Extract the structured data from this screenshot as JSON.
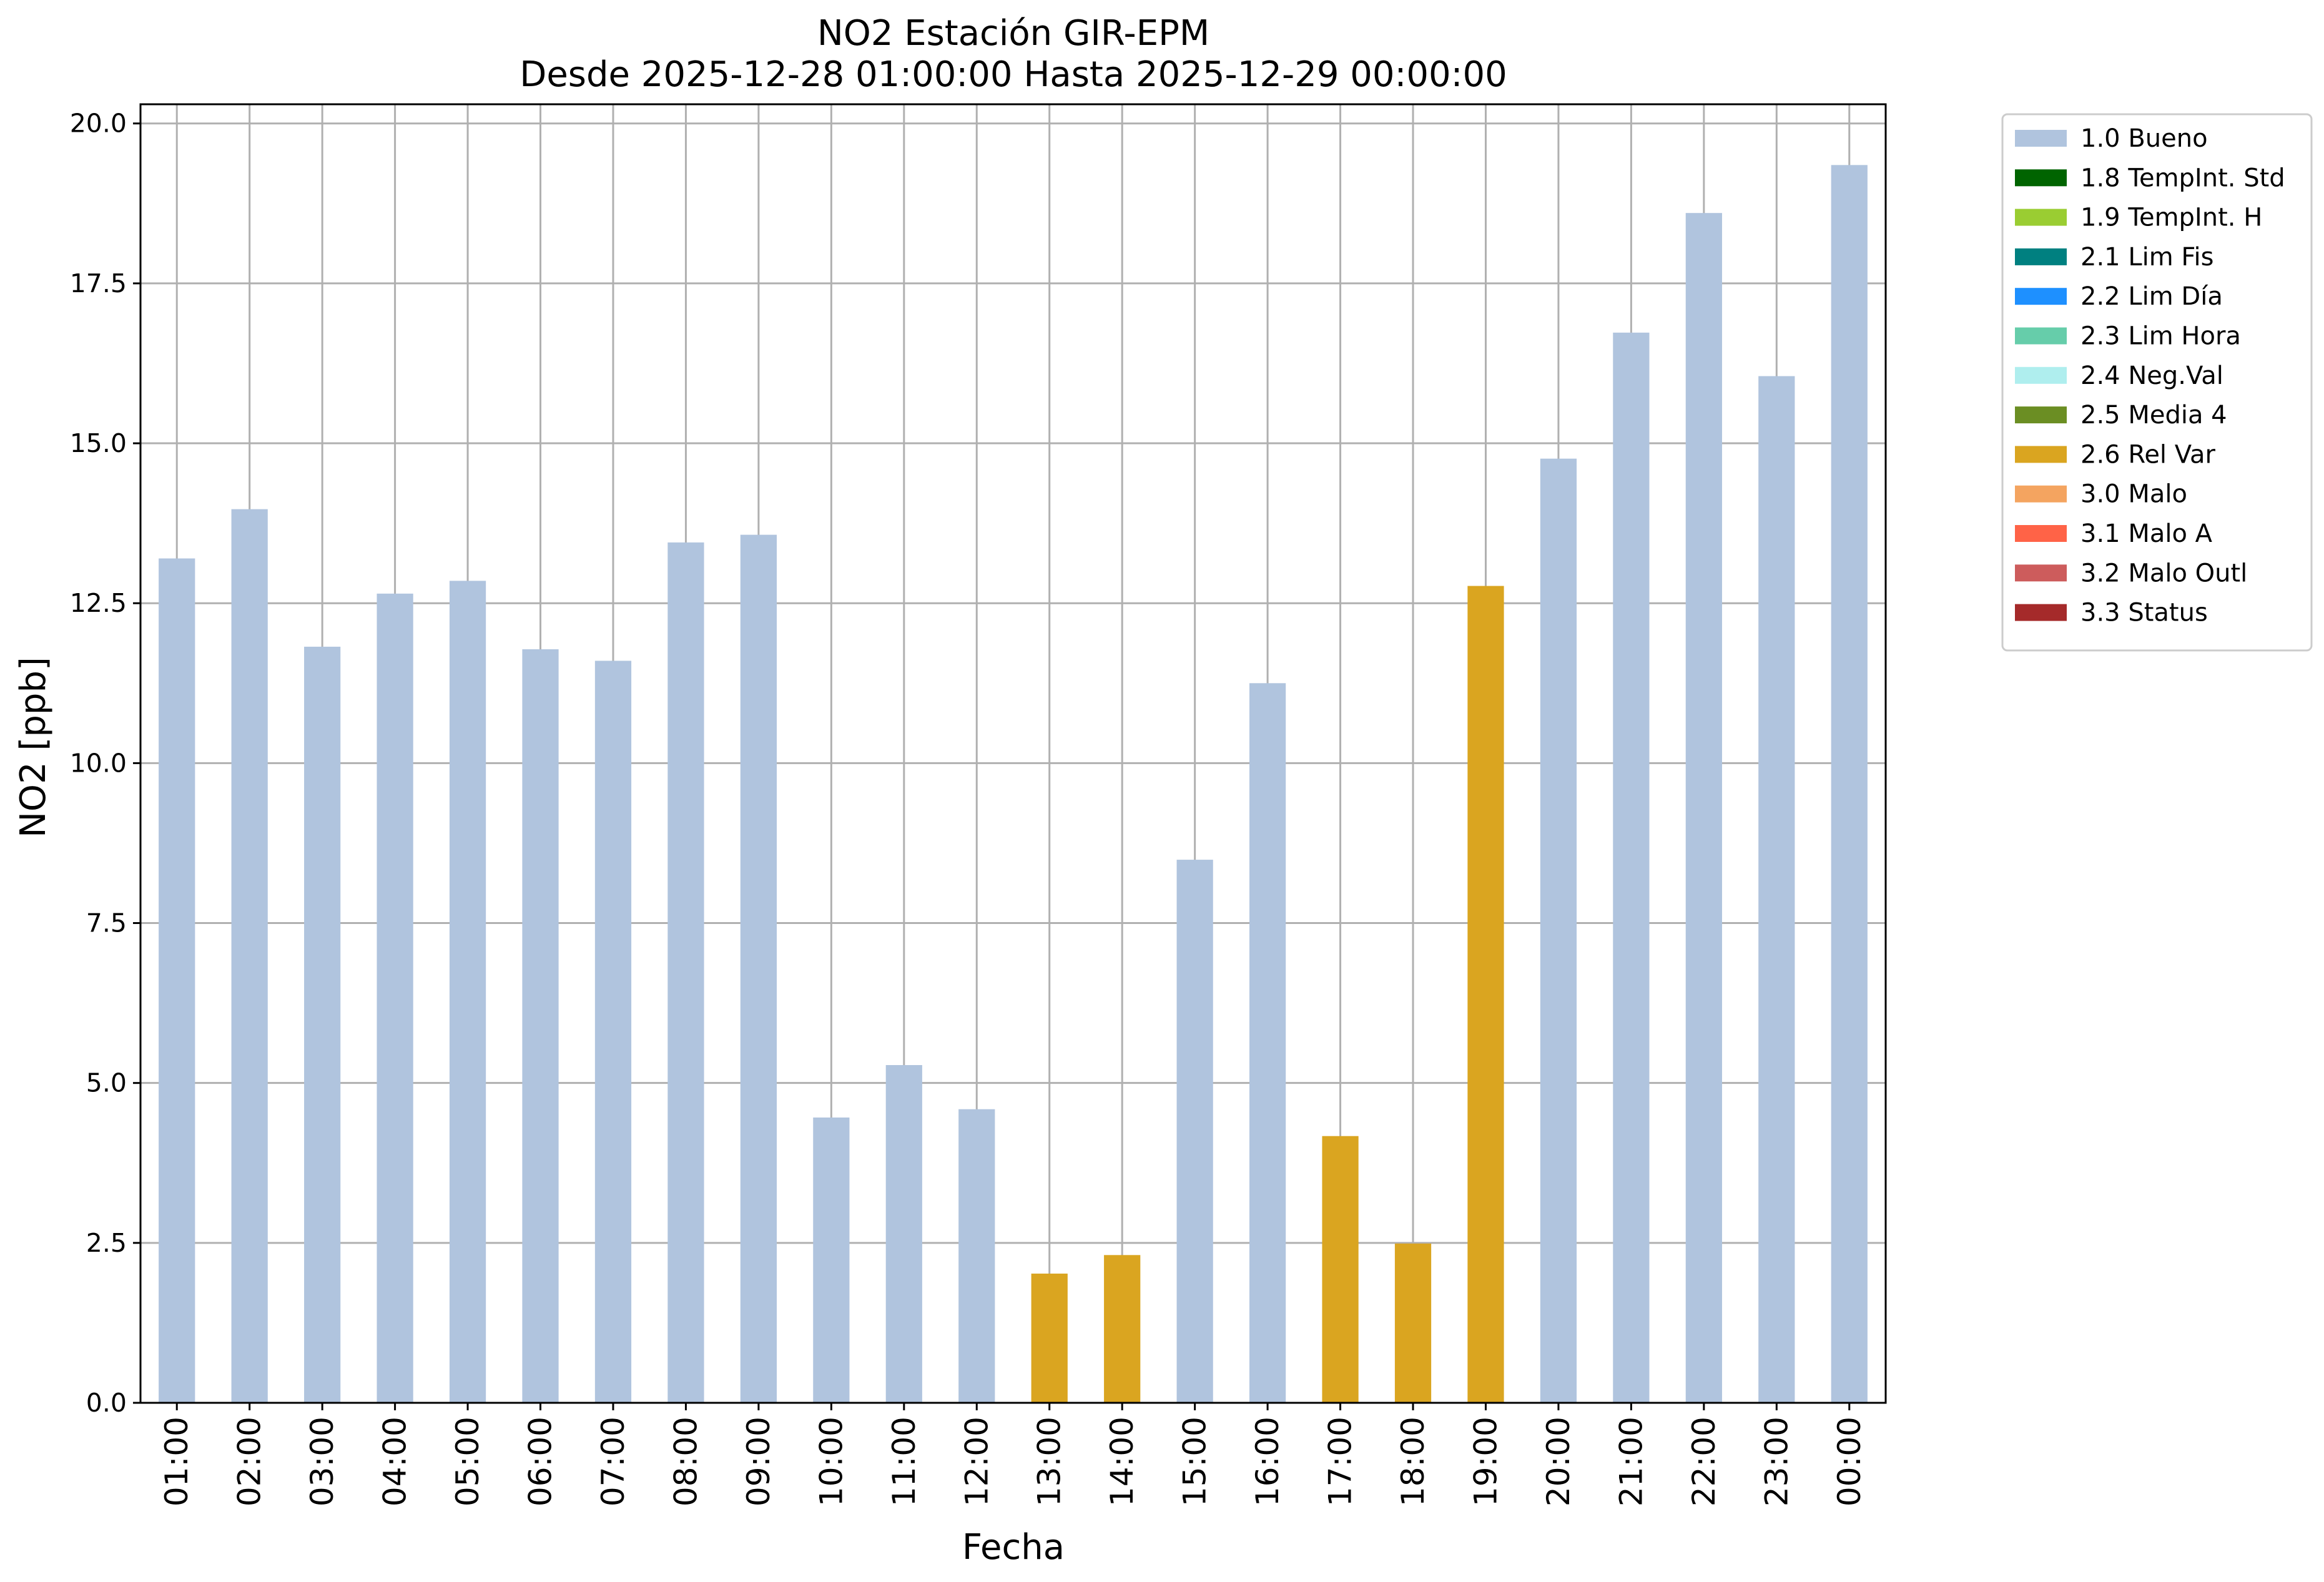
{
  "chart_data": {
    "type": "bar",
    "title": "NO2 Estación GIR-EPM",
    "subtitle": "Desde 2025-12-28 01:00:00 Hasta 2025-12-29 00:00:00",
    "xlabel": "Fecha",
    "ylabel": "NO2 [ppb]",
    "ylim": [
      0,
      20.3
    ],
    "yticks": [
      "0.0",
      "2.5",
      "5.0",
      "7.5",
      "10.0",
      "12.5",
      "15.0",
      "17.5",
      "20.0"
    ],
    "grid": true,
    "legend_position": "outside-top-right",
    "categories": [
      "01:00",
      "02:00",
      "03:00",
      "04:00",
      "05:00",
      "06:00",
      "07:00",
      "08:00",
      "09:00",
      "10:00",
      "11:00",
      "12:00",
      "13:00",
      "14:00",
      "15:00",
      "16:00",
      "17:00",
      "18:00",
      "19:00",
      "20:00",
      "21:00",
      "22:00",
      "23:00",
      "00:00"
    ],
    "values": [
      13.2,
      13.97,
      11.82,
      12.65,
      12.85,
      11.78,
      11.6,
      13.45,
      13.57,
      4.46,
      5.28,
      4.59,
      2.02,
      2.31,
      8.49,
      11.25,
      4.17,
      2.49,
      12.77,
      14.76,
      16.73,
      18.6,
      16.05,
      19.35
    ],
    "flags": [
      "1.0 Bueno",
      "1.0 Bueno",
      "1.0 Bueno",
      "1.0 Bueno",
      "1.0 Bueno",
      "1.0 Bueno",
      "1.0 Bueno",
      "1.0 Bueno",
      "1.0 Bueno",
      "1.0 Bueno",
      "1.0 Bueno",
      "1.0 Bueno",
      "2.6 Rel Var",
      "2.6 Rel Var",
      "1.0 Bueno",
      "1.0 Bueno",
      "2.6 Rel Var",
      "2.6 Rel Var",
      "2.6 Rel Var",
      "1.0 Bueno",
      "1.0 Bueno",
      "1.0 Bueno",
      "1.0 Bueno",
      "1.0 Bueno"
    ],
    "legend": [
      {
        "label": "1.0 Bueno",
        "color": "#b0c4de"
      },
      {
        "label": "1.8 TempInt. Std",
        "color": "#006400"
      },
      {
        "label": "1.9 TempInt. H",
        "color": "#9acd32"
      },
      {
        "label": "2.1 Lim Fis",
        "color": "#008080"
      },
      {
        "label": "2.2 Lim Día",
        "color": "#1e90ff"
      },
      {
        "label": "2.3 Lim Hora",
        "color": "#66cdaa"
      },
      {
        "label": "2.4 Neg.Val",
        "color": "#afeeee"
      },
      {
        "label": "2.5 Media 4",
        "color": "#6b8e23"
      },
      {
        "label": "2.6 Rel Var",
        "color": "#daa520"
      },
      {
        "label": "3.0 Malo",
        "color": "#f4a460"
      },
      {
        "label": "3.1 Malo A",
        "color": "#ff6347"
      },
      {
        "label": "3.2 Malo Outl",
        "color": "#cd5c5c"
      },
      {
        "label": "3.3 Status",
        "color": "#a52a2a"
      }
    ]
  }
}
